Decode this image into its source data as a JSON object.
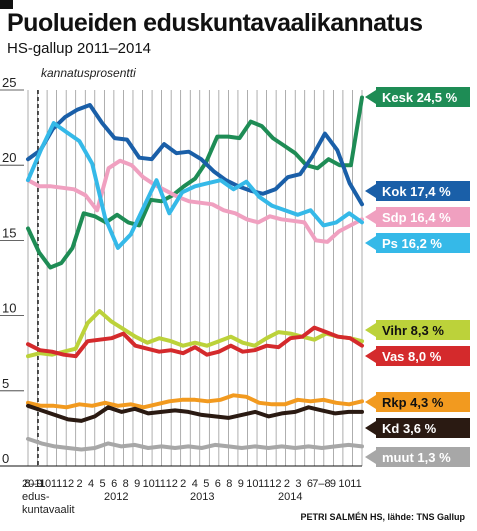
{
  "title": "Puolueiden eduskuntavaalikannatus",
  "subtitle": "HS-gallup 2011–2014",
  "credit": "PETRI SALMÉN HS, lähde: TNS Gallup",
  "chart_data": {
    "type": "line",
    "ylabel": "kannatusprosentti",
    "ylim": [
      0,
      25
    ],
    "yticks": [
      0,
      5,
      10,
      15,
      20,
      25
    ],
    "grid": "vertical",
    "x_labels": [
      "2011",
      "8–9",
      "10",
      "11",
      "12",
      "2",
      "4",
      "5",
      "6",
      "8",
      "9",
      "10",
      "11",
      "12",
      "1",
      "2",
      "3",
      "4",
      "5",
      "6",
      "8",
      "9",
      "10",
      "11",
      "12",
      "1",
      "2",
      "3",
      "4",
      "5",
      "6",
      "7–8",
      "8–9",
      "9",
      "10",
      "11"
    ],
    "x_tick_texts": [
      "2011",
      "8–9",
      "10",
      "11",
      "12",
      "2",
      "4",
      "5",
      "6",
      "8",
      "9",
      "10",
      "11",
      "12",
      "2",
      "4",
      "5",
      "6",
      "8",
      "9",
      "10",
      "11",
      "12",
      "2",
      "3",
      "6",
      "7–8",
      "9",
      "10",
      "11"
    ],
    "year_labels": [
      {
        "text": "edus-",
        "sub": "kuntavaalit"
      },
      {
        "text": "2012"
      },
      {
        "text": "2013"
      },
      {
        "text": "2014"
      }
    ],
    "series": [
      {
        "name": "Kesk",
        "label": "Kesk 24,5 %",
        "color": "#1e8c55",
        "values": [
          15.8,
          14.2,
          13.2,
          13.5,
          14.5,
          16.8,
          16.6,
          16.2,
          16.7,
          16.2,
          16.0,
          17.7,
          17.6,
          18.0,
          18.6,
          19.1,
          20.2,
          21.9,
          21.9,
          21.8,
          22.9,
          22.6,
          21.8,
          21.3,
          20.8,
          20.0,
          19.8,
          20.4,
          20.0,
          20.0,
          24.5
        ]
      },
      {
        "name": "Kok",
        "label": "Kok 17,4 %",
        "color": "#1a5fa8",
        "values": [
          20.4,
          21.0,
          22.4,
          23.2,
          23.7,
          24.0,
          22.8,
          21.8,
          21.7,
          20.5,
          20.4,
          21.4,
          20.8,
          20.9,
          20.4,
          19.6,
          19.0,
          18.6,
          18.3,
          18.1,
          18.4,
          19.2,
          19.4,
          20.6,
          22.1,
          21.0,
          18.8,
          17.4
        ]
      },
      {
        "name": "Sdp",
        "label": "Sdp 16,4 %",
        "color": "#f0a0c0",
        "values": [
          19.0,
          18.6,
          18.6,
          18.5,
          18.4,
          18.0,
          17.0,
          19.8,
          20.3,
          20.0,
          19.2,
          18.7,
          18.3,
          17.9,
          17.6,
          17.5,
          17.4,
          17.0,
          16.8,
          16.4,
          16.2,
          16.6,
          16.4,
          16.3,
          16.2,
          15.0,
          14.9,
          15.6,
          16.0,
          16.4
        ]
      },
      {
        "name": "Ps",
        "label": "Ps 16,2 %",
        "color": "#35b9e8",
        "values": [
          19.0,
          21.0,
          22.8,
          22.2,
          21.6,
          20.1,
          16.5,
          14.5,
          15.4,
          17.2,
          19.0,
          16.8,
          18.2,
          18.6,
          18.8,
          19.0,
          18.4,
          18.9,
          17.9,
          17.3,
          17.0,
          16.7,
          17.0,
          16.0,
          16.2,
          16.8,
          16.2
        ]
      },
      {
        "name": "Vihr",
        "label": "Vihr 8,3 %",
        "color": "#bcd23a",
        "values": [
          7.3,
          7.5,
          7.4,
          7.6,
          7.8,
          9.5,
          10.3,
          9.6,
          9.1,
          8.6,
          8.2,
          8.5,
          8.3,
          8.0,
          8.2,
          8.0,
          8.3,
          8.6,
          8.2,
          8.0,
          8.5,
          8.9,
          8.8,
          8.6,
          8.4,
          8.8,
          8.6,
          8.5,
          8.3
        ]
      },
      {
        "name": "Vas",
        "label": "Vas 8,0 %",
        "color": "#d42a2c",
        "values": [
          8.1,
          7.7,
          7.6,
          7.4,
          7.3,
          8.3,
          8.4,
          8.5,
          8.8,
          8.0,
          7.8,
          7.6,
          7.7,
          7.5,
          7.9,
          7.4,
          7.6,
          8.0,
          7.6,
          7.7,
          8.0,
          7.9,
          8.5,
          8.6,
          9.2,
          8.9,
          8.6,
          8.5,
          8.0
        ]
      },
      {
        "name": "Rkp",
        "label": "Rkp 4,3 %",
        "color": "#f29a1f",
        "values": [
          4.2,
          4.0,
          4.0,
          3.9,
          4.1,
          4.0,
          4.2,
          4.0,
          4.1,
          3.9,
          4.1,
          4.3,
          4.4,
          4.4,
          4.3,
          4.4,
          4.7,
          4.6,
          4.2,
          4.1,
          4.1,
          4.4,
          4.3,
          4.4,
          4.2,
          4.1,
          4.3
        ]
      },
      {
        "name": "Kd",
        "label": "Kd 3,6 %",
        "color": "#2a1a12",
        "values": [
          4.0,
          3.7,
          3.4,
          3.1,
          3.0,
          3.3,
          3.9,
          3.6,
          3.8,
          3.5,
          3.6,
          3.7,
          3.6,
          3.4,
          3.3,
          3.2,
          3.4,
          3.6,
          3.3,
          3.5,
          3.6,
          3.9,
          3.7,
          3.5,
          3.6,
          3.6
        ]
      },
      {
        "name": "muut",
        "label": "muut 1,3 %",
        "color": "#a7a7a7",
        "values": [
          1.8,
          1.5,
          1.3,
          1.2,
          1.1,
          1.2,
          1.5,
          1.3,
          1.4,
          1.2,
          1.3,
          1.2,
          1.3,
          1.2,
          1.4,
          1.3,
          1.2,
          1.3,
          1.2,
          1.3,
          1.2,
          1.3,
          1.2,
          1.3,
          1.4,
          1.3
        ]
      }
    ]
  }
}
